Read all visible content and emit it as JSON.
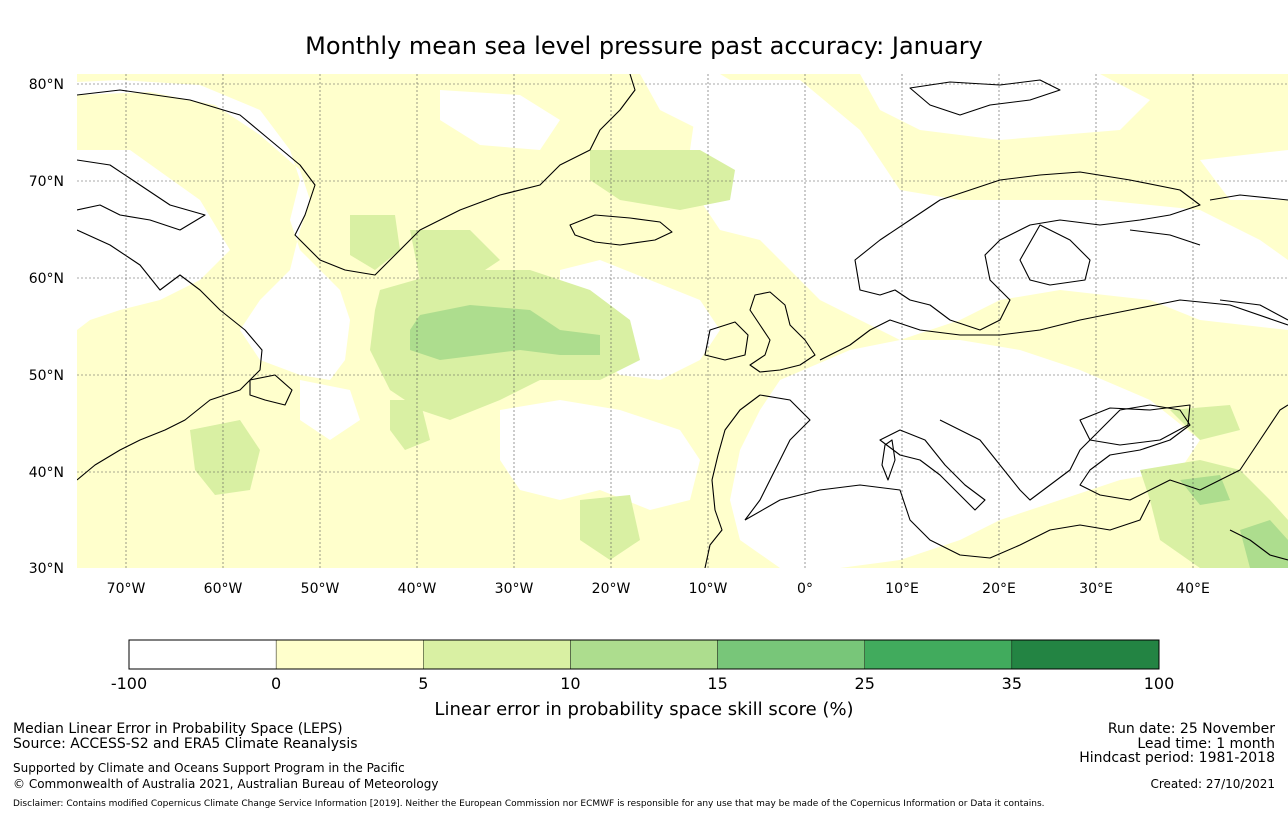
{
  "title": "Monthly mean sea level pressure past accuracy: January",
  "map": {
    "lat_labels": [
      "80°N",
      "70°N",
      "60°N",
      "50°N",
      "40°N",
      "30°N"
    ],
    "lon_labels": [
      "70°W",
      "60°W",
      "50°W",
      "40°W",
      "30°W",
      "20°W",
      "10°W",
      "0°",
      "10°E",
      "20°E",
      "30°E",
      "40°E"
    ],
    "lat_values": [
      80,
      70,
      60,
      50,
      40,
      30
    ],
    "lon_values": [
      -70,
      -60,
      -50,
      -40,
      -30,
      -20,
      -10,
      0,
      10,
      20,
      30,
      40
    ],
    "extent": {
      "lon_min": -75,
      "lon_max": 50,
      "lat_min": 30,
      "lat_max": 81
    }
  },
  "colorbar": {
    "title": "Linear error in probability space skill score (%)",
    "ticks": [
      "-100",
      "0",
      "5",
      "10",
      "15",
      "25",
      "35",
      "100"
    ],
    "colors": [
      "#ffffff",
      "#ffffcc",
      "#d9f0a3",
      "#addd8e",
      "#78c679",
      "#41ab5d",
      "#238443"
    ]
  },
  "footer": {
    "left1": "Median Linear Error in Probability Space (LEPS)",
    "left2": "Source: ACCESS-S2 and ERA5 Climate Reanalysis",
    "left3": "Supported by Climate and Oceans Support Program in the Pacific",
    "left4": "© Commonwealth of Australia 2021, Australian Bureau of Meteorology",
    "right1": "Run date: 25 November",
    "right2": "Lead time: 1 month",
    "right3": "Hindcast period: 1981-2018",
    "right4": "Created: 27/10/2021",
    "disclaimer": "Disclaimer: Contains modified Copernicus Climate Change Service Information [2019]. Neither the European Commission nor ECMWF is responsible for any use that may be made of the Copernicus Information or Data it contains."
  }
}
